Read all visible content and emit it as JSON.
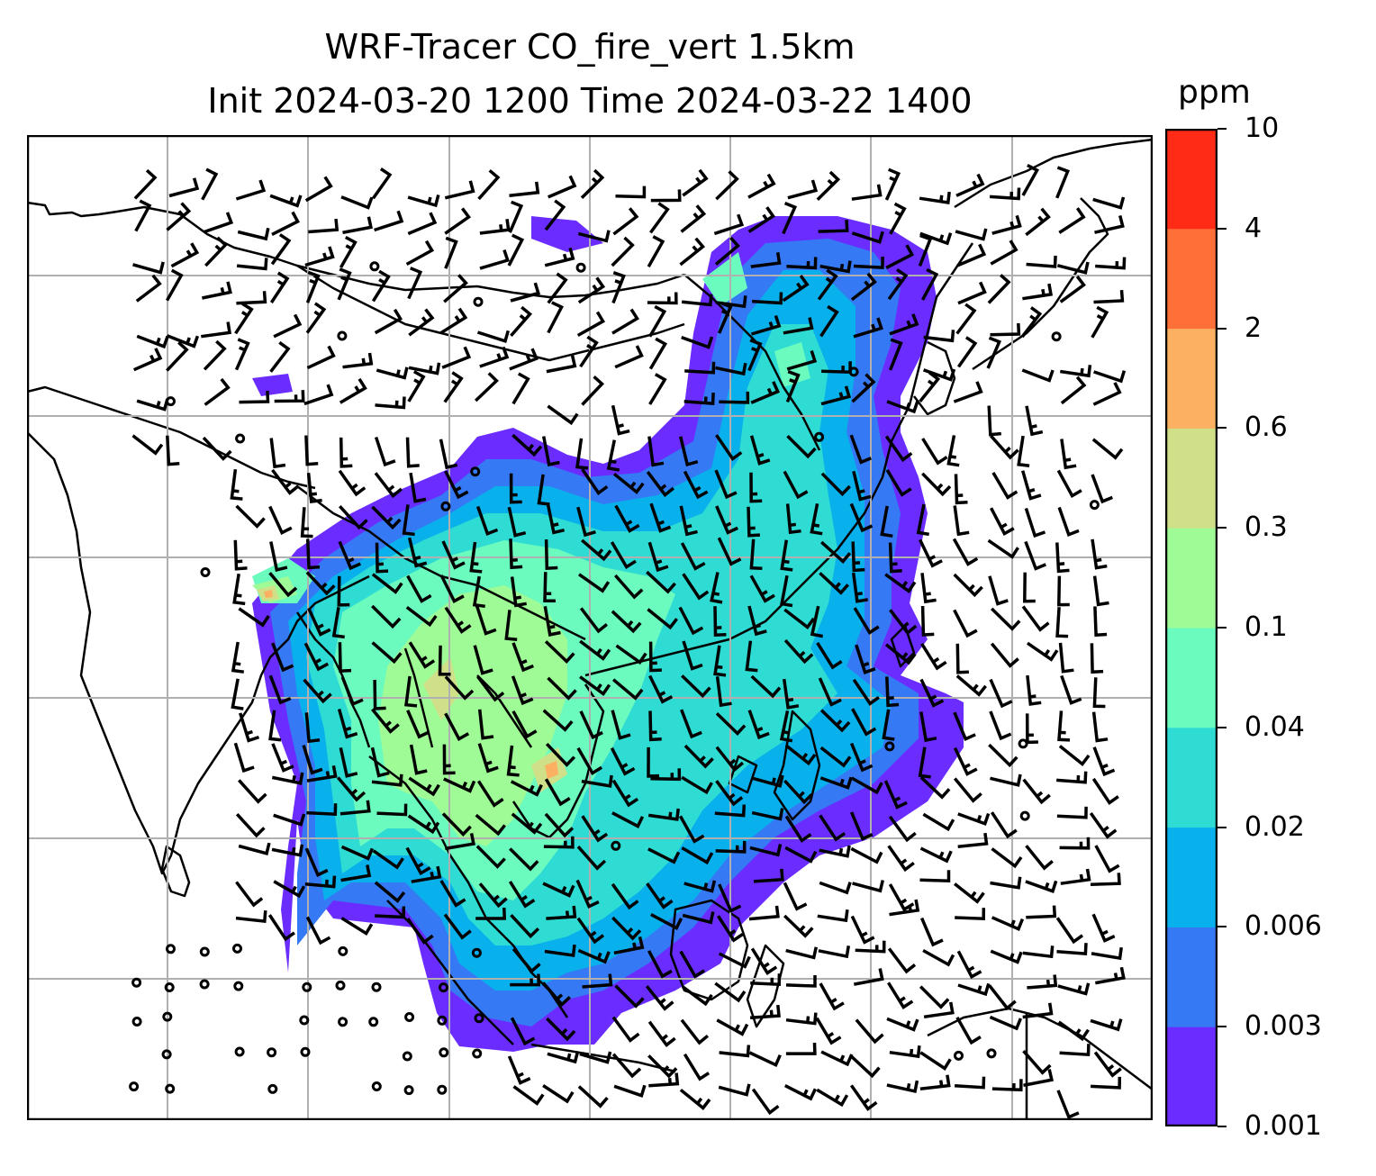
{
  "title": {
    "line1": "WRF-Tracer CO_fire_vert 1.5km",
    "line2": "Init 2024-03-20 1200 Time 2024-03-22 1400"
  },
  "colorbar": {
    "unit": "ppm",
    "levels": [
      "0.001",
      "0.003",
      "0.006",
      "0.02",
      "0.04",
      "0.1",
      "0.3",
      "0.6",
      "2",
      "4",
      "10"
    ],
    "colors": [
      "#6a2cff",
      "#3579f5",
      "#09b1ec",
      "#2fdcd4",
      "#6cfbbf",
      "#9ffb95",
      "#cfe089",
      "#fcb062",
      "#ff7039",
      "#ff2b17"
    ]
  },
  "map": {
    "gridlines": true,
    "vectors": "wind barbs",
    "colors": {
      "gridline": "#b0b0b0",
      "coast": "#000000"
    }
  }
}
